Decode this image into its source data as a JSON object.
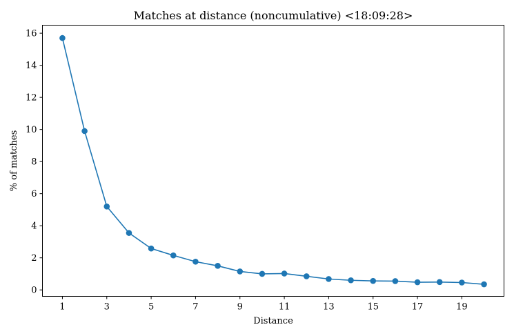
{
  "chart_data": {
    "type": "line",
    "title": "Matches at distance (noncumulative) <18:09:28>",
    "xlabel": "Distance",
    "ylabel": "% of matches",
    "xlim": [
      0.1,
      20.9
    ],
    "ylim": [
      -0.4,
      16.5
    ],
    "xticks": [
      1,
      3,
      5,
      7,
      9,
      11,
      13,
      15,
      17,
      19
    ],
    "yticks": [
      0,
      2,
      4,
      6,
      8,
      10,
      12,
      14,
      16
    ],
    "grid": false,
    "legend": "none",
    "color": "#1f77b4",
    "x": [
      1,
      2,
      3,
      4,
      5,
      6,
      7,
      8,
      9,
      10,
      11,
      12,
      13,
      14,
      15,
      16,
      17,
      18,
      19,
      20
    ],
    "series": [
      {
        "values": [
          15.7,
          9.9,
          5.2,
          3.55,
          2.58,
          2.15,
          1.76,
          1.5,
          1.15,
          1.0,
          1.02,
          0.85,
          0.68,
          0.6,
          0.56,
          0.55,
          0.48,
          0.49,
          0.46,
          0.35
        ]
      }
    ]
  }
}
